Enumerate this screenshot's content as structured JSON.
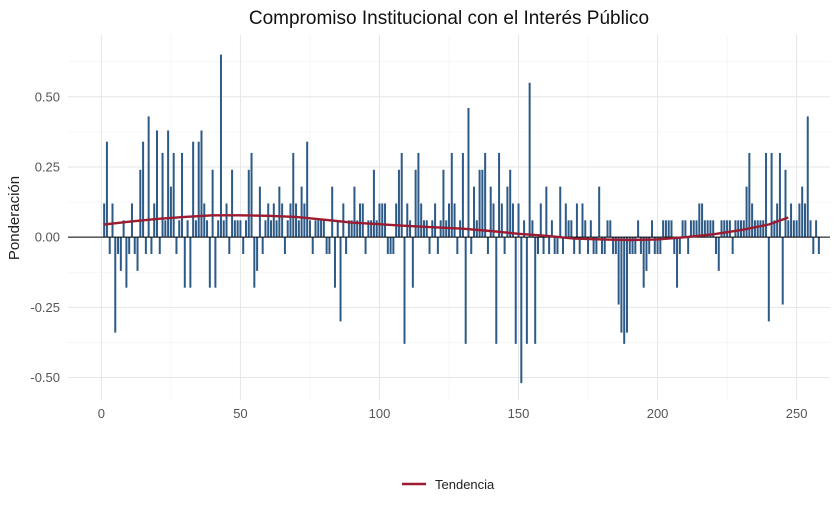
{
  "chart_data": {
    "type": "bar",
    "title": "Compromiso Institucional con el Interés Público",
    "xlabel": "",
    "ylabel": "Ponderación",
    "xlim": [
      -12,
      262
    ],
    "ylim": [
      -0.58,
      0.72
    ],
    "x_ticks": [
      {
        "value": 0,
        "label": "0"
      },
      {
        "value": 50,
        "label": "50"
      },
      {
        "value": 100,
        "label": "100"
      },
      {
        "value": 150,
        "label": "150"
      },
      {
        "value": 200,
        "label": "200"
      },
      {
        "value": 250,
        "label": "250"
      }
    ],
    "y_ticks": [
      {
        "value": -0.5,
        "label": "-0.50"
      },
      {
        "value": -0.25,
        "label": "-0.25"
      },
      {
        "value": 0,
        "label": "0.00"
      },
      {
        "value": 0.25,
        "label": "0.25"
      },
      {
        "value": 0.5,
        "label": "0.50"
      }
    ],
    "bar_color": "#2d5a87",
    "trend_color": "#9b1b30",
    "grid": true,
    "legend": {
      "position": "bottom",
      "entries": [
        {
          "label": "Tendencia",
          "color": "#9b1b30"
        }
      ]
    },
    "values": [
      0.12,
      0.34,
      -0.06,
      0.12,
      -0.34,
      -0.06,
      -0.12,
      0.06,
      -0.18,
      -0.06,
      0.12,
      -0.06,
      -0.12,
      0.24,
      0.34,
      -0.06,
      0.43,
      -0.06,
      0.12,
      0.38,
      -0.06,
      0.3,
      0.06,
      0.38,
      0.18,
      0.3,
      -0.06,
      0.06,
      0.3,
      -0.18,
      0.06,
      -0.18,
      0.34,
      0.06,
      0.34,
      0.38,
      0.12,
      0.06,
      -0.18,
      0.24,
      -0.18,
      0.06,
      0.65,
      0.06,
      0.12,
      -0.06,
      0.24,
      0.06,
      0.06,
      0.06,
      -0.06,
      0.06,
      0.24,
      0.3,
      -0.18,
      -0.12,
      0.18,
      -0.06,
      0.06,
      0.12,
      0.06,
      0.12,
      0.06,
      0.18,
      0.12,
      -0.06,
      0.06,
      0.12,
      0.3,
      0.12,
      0.06,
      0.18,
      0.12,
      0.34,
      0.06,
      -0.06,
      0.06,
      0.06,
      0.06,
      0.06,
      -0.06,
      -0.06,
      0.18,
      -0.18,
      0.06,
      -0.3,
      0.12,
      -0.06,
      0.06,
      0.06,
      0.18,
      0.06,
      0.12,
      0.12,
      -0.06,
      0.06,
      0.06,
      0.24,
      0.06,
      0.12,
      0.12,
      0.12,
      -0.06,
      -0.06,
      -0.06,
      0.12,
      0.24,
      0.3,
      -0.38,
      0.12,
      0.06,
      -0.18,
      0.24,
      0.3,
      0.12,
      0.06,
      0.06,
      -0.06,
      0.06,
      0.12,
      -0.06,
      0.06,
      0.24,
      0.06,
      0.12,
      0.3,
      0.12,
      -0.06,
      0.06,
      0.3,
      -0.38,
      0.46,
      -0.06,
      0.18,
      0.06,
      0.24,
      0.24,
      0.3,
      -0.06,
      0.18,
      0.12,
      -0.38,
      0.3,
      0.12,
      -0.06,
      0.18,
      0.24,
      0.12,
      -0.38,
      0.12,
      -0.52,
      0.06,
      -0.38,
      0.55,
      0.06,
      -0.38,
      -0.06,
      0.12,
      -0.06,
      0.18,
      -0.06,
      0.06,
      -0.06,
      -0.06,
      0.18,
      -0.06,
      0.12,
      0.06,
      0.06,
      -0.06,
      0.12,
      -0.06,
      0.12,
      0.06,
      -0.06,
      0.06,
      -0.06,
      -0.06,
      0.18,
      -0.06,
      -0.06,
      0.06,
      0.06,
      -0.06,
      -0.06,
      -0.24,
      -0.34,
      -0.38,
      -0.34,
      -0.06,
      -0.06,
      -0.06,
      0.06,
      -0.06,
      -0.18,
      -0.12,
      -0.06,
      0.06,
      -0.06,
      -0.06,
      -0.06,
      0.06,
      0.06,
      0.06,
      0.06,
      -0.06,
      -0.18,
      -0.06,
      0.06,
      0.06,
      -0.06,
      0.06,
      0.06,
      0.06,
      0.12,
      0.12,
      0.06,
      0.06,
      0.06,
      0.06,
      -0.06,
      -0.12,
      0.06,
      0.06,
      0.06,
      0.06,
      -0.06,
      0.06,
      0.06,
      0.06,
      0.06,
      0.18,
      0.3,
      0.12,
      0.06,
      0.06,
      0.06,
      0.06,
      0.3,
      -0.3,
      0.3,
      0.06,
      0.12,
      0.3,
      -0.24,
      0.24,
      0.06,
      0.12,
      0.06,
      0.06,
      0.12,
      0.18,
      0.12,
      0.43,
      0.06,
      -0.06,
      0.06,
      -0.06
    ],
    "trend": {
      "name": "Tendencia",
      "x": [
        1,
        10,
        20,
        30,
        40,
        50,
        60,
        70,
        80,
        90,
        100,
        110,
        120,
        130,
        140,
        150,
        160,
        170,
        180,
        190,
        200,
        210,
        220,
        230,
        240,
        247
      ],
      "y": [
        0.045,
        0.055,
        0.065,
        0.072,
        0.078,
        0.078,
        0.076,
        0.072,
        0.062,
        0.052,
        0.046,
        0.04,
        0.035,
        0.03,
        0.022,
        0.012,
        0.005,
        -0.005,
        -0.008,
        -0.01,
        -0.008,
        0.0,
        0.01,
        0.025,
        0.045,
        0.07
      ]
    }
  }
}
